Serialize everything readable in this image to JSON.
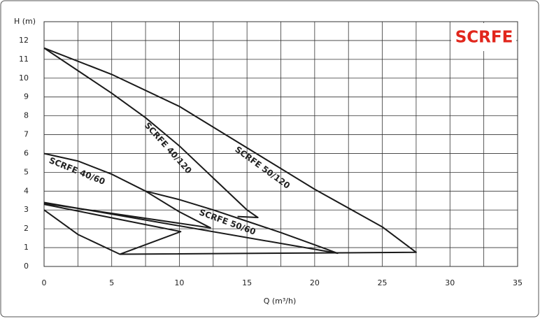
{
  "chart_data": {
    "type": "line",
    "title": "SCRFE",
    "x_label": "Q (m³/h)",
    "y_label": "H (m)",
    "xlim": [
      0,
      35
    ],
    "ylim": [
      0,
      13
    ],
    "xticks": [
      0,
      5,
      10,
      15,
      20,
      25,
      30,
      35
    ],
    "yticks": [
      0,
      1,
      2,
      3,
      4,
      5,
      6,
      7,
      8,
      9,
      10,
      11,
      12
    ],
    "grid": true,
    "series": [
      {
        "name": "SCRFE 50/120",
        "color": "#1a1a1a",
        "x": [
          0,
          5,
          10,
          15,
          20,
          25,
          27.5,
          5.6
        ],
        "values": [
          11.6,
          10.2,
          8.5,
          6.3,
          4.1,
          2.1,
          0.75,
          0.65
        ]
      },
      {
        "name": "SCRFE 40/120",
        "color": "#1a1a1a",
        "x": [
          0,
          2.5,
          5,
          7.5,
          10,
          12.5,
          15,
          15.8,
          14.3
        ],
        "values": [
          11.6,
          10.4,
          9.2,
          7.9,
          6.4,
          4.7,
          3.0,
          2.6,
          2.65
        ]
      },
      {
        "name": "SCRFE 50/60",
        "color": "#1a1a1a",
        "x": [
          7.5,
          10,
          12.5,
          15,
          17.5,
          20,
          21.7,
          0
        ],
        "values": [
          4.0,
          3.55,
          3.0,
          2.4,
          1.8,
          1.15,
          0.7,
          3.4
        ]
      },
      {
        "name": "SCRFE 40/60",
        "color": "#1a1a1a",
        "x": [
          0,
          2.5,
          5,
          7.5,
          10,
          12.3,
          0,
          null,
          0,
          2.5,
          5.6,
          10.1,
          0
        ],
        "values": [
          6.0,
          5.6,
          4.9,
          4.0,
          2.9,
          2.05,
          3.35,
          null,
          3.0,
          1.7,
          0.65,
          1.85,
          3.3
        ]
      }
    ]
  }
}
